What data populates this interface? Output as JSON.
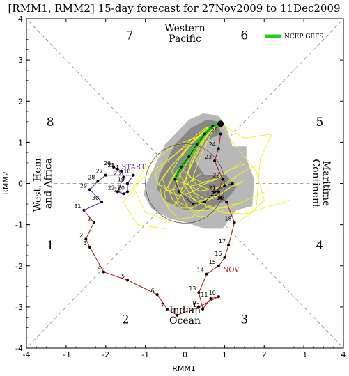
{
  "chart_data": {
    "type": "scatter",
    "title": "[RMM1, RMM2] 15-day forecast for 27Nov2009 to 11Dec2009",
    "xlabel": "RMM1",
    "ylabel": "RMM2",
    "xlim": [
      -4,
      4
    ],
    "ylim": [
      -4,
      4
    ],
    "xticks": [
      "-4",
      "-3",
      "-2",
      "-1",
      "0",
      "1",
      "2",
      "3",
      "4"
    ],
    "yticks": [
      "-4",
      "-3",
      "-2",
      "-1",
      "0",
      "1",
      "2",
      "3",
      "4"
    ],
    "legend_position": "top-right",
    "legend_entries": [
      "NCEP GEFS"
    ],
    "phases": [
      {
        "label": "1",
        "x": -3.4,
        "y": -1.5
      },
      {
        "label": "2",
        "x": -1.5,
        "y": -3.3
      },
      {
        "label": "3",
        "x": 1.5,
        "y": -3.3
      },
      {
        "label": "4",
        "x": 3.4,
        "y": -1.5
      },
      {
        "label": "5",
        "x": 3.4,
        "y": 1.5
      },
      {
        "label": "6",
        "x": 1.5,
        "y": 3.6
      },
      {
        "label": "7",
        "x": -1.4,
        "y": 3.6
      },
      {
        "label": "8",
        "x": -3.4,
        "y": 1.5
      }
    ],
    "regions": [
      {
        "lines": [
          "Western",
          "Pacific"
        ],
        "x": 0,
        "y": 3.65,
        "rotate": 0
      },
      {
        "lines": [
          "Indian",
          "Ocean"
        ],
        "x": 0,
        "y": -3.2,
        "rotate": 0
      },
      {
        "lines": [
          "West. Hem.",
          "and Africa"
        ],
        "x": -3.6,
        "y": 0,
        "rotate": -90
      },
      {
        "lines": [
          "Maritime",
          "Continent"
        ],
        "x": 3.45,
        "y": 0,
        "rotate": 90
      }
    ],
    "month_labels": [
      {
        "text": "START",
        "x": -1.6,
        "y": 0.35,
        "color": "#6a2c9c"
      },
      {
        "text": "NOV",
        "x": 0.95,
        "y": -2.15,
        "color": "#b22222"
      }
    ],
    "observed_oct": {
      "color": "#6a2c9c",
      "labels": [
        "26",
        "25",
        "24",
        "23",
        "22",
        "21",
        "20",
        "19",
        "18",
        "27",
        "28",
        "29",
        "30",
        "31"
      ],
      "points": [
        [
          -1.8,
          0.4
        ],
        [
          -1.7,
          0.35
        ],
        [
          -1.6,
          0.3
        ],
        [
          -1.55,
          0.15
        ],
        [
          -1.7,
          -0.2
        ],
        [
          -1.55,
          -0.25
        ],
        [
          -1.45,
          -0.2
        ],
        [
          -1.45,
          0.0
        ],
        [
          -1.3,
          0.2
        ],
        [
          -2.0,
          0.2
        ],
        [
          -2.2,
          0.05
        ],
        [
          -2.4,
          -0.15
        ],
        [
          -2.1,
          -0.45
        ],
        [
          -2.55,
          -0.65
        ]
      ]
    },
    "observed_nov": {
      "color": "#b22222",
      "labels": [
        "1",
        "2",
        "3",
        "4",
        "5",
        "6",
        "7",
        "8",
        "9",
        "10",
        "11",
        "12",
        "13",
        "14",
        "15",
        "16",
        "17",
        "18",
        "19",
        "20",
        "21",
        "22",
        "23",
        "24",
        "25"
      ],
      "points": [
        [
          -2.3,
          -0.95
        ],
        [
          -2.5,
          -1.35
        ],
        [
          -2.4,
          -1.55
        ],
        [
          -2.05,
          -2.15
        ],
        [
          -1.45,
          -2.35
        ],
        [
          -0.7,
          -2.7
        ],
        [
          -0.45,
          -3.05
        ],
        [
          -0.2,
          -3.2
        ],
        [
          0.35,
          -3.0
        ],
        [
          0.85,
          -2.75
        ],
        [
          0.65,
          -2.8
        ],
        [
          0.45,
          -3.05
        ],
        [
          0.35,
          -2.65
        ],
        [
          0.55,
          -2.2
        ],
        [
          0.85,
          -2.0
        ],
        [
          1.0,
          -1.8
        ],
        [
          1.1,
          -1.5
        ],
        [
          1.25,
          -0.95
        ],
        [
          1.05,
          -0.45
        ],
        [
          0.9,
          -0.35
        ],
        [
          0.85,
          -0.2
        ],
        [
          0.95,
          0.1
        ],
        [
          0.75,
          0.55
        ],
        [
          0.85,
          0.85
        ],
        [
          0.9,
          1.2
        ]
      ]
    },
    "ensemble_mean": {
      "color": "#22cc22",
      "points": [
        [
          0.9,
          1.45
        ],
        [
          0.7,
          1.4
        ],
        [
          0.5,
          1.2
        ],
        [
          0.3,
          0.95
        ],
        [
          0.1,
          0.65
        ],
        [
          -0.1,
          0.4
        ],
        [
          -0.25,
          0.1
        ]
      ]
    },
    "ensemble_mean_markers": {
      "points": [
        [
          0.9,
          1.45
        ],
        [
          0.7,
          1.4
        ],
        [
          0.5,
          1.2
        ],
        [
          0.3,
          0.95
        ],
        [
          0.1,
          0.65
        ],
        [
          -0.1,
          0.4
        ],
        [
          -0.25,
          0.1
        ],
        [
          -0.15,
          -0.2
        ],
        [
          0.2,
          -0.5
        ],
        [
          0.5,
          -0.45
        ],
        [
          0.75,
          -0.2
        ],
        [
          1.0,
          -0.05
        ],
        [
          1.2,
          0.0
        ]
      ]
    },
    "spread_region_inner_color": "#888888",
    "spread_region_outer_color": "#b8b8b8",
    "member_color": "#f2f221"
  }
}
